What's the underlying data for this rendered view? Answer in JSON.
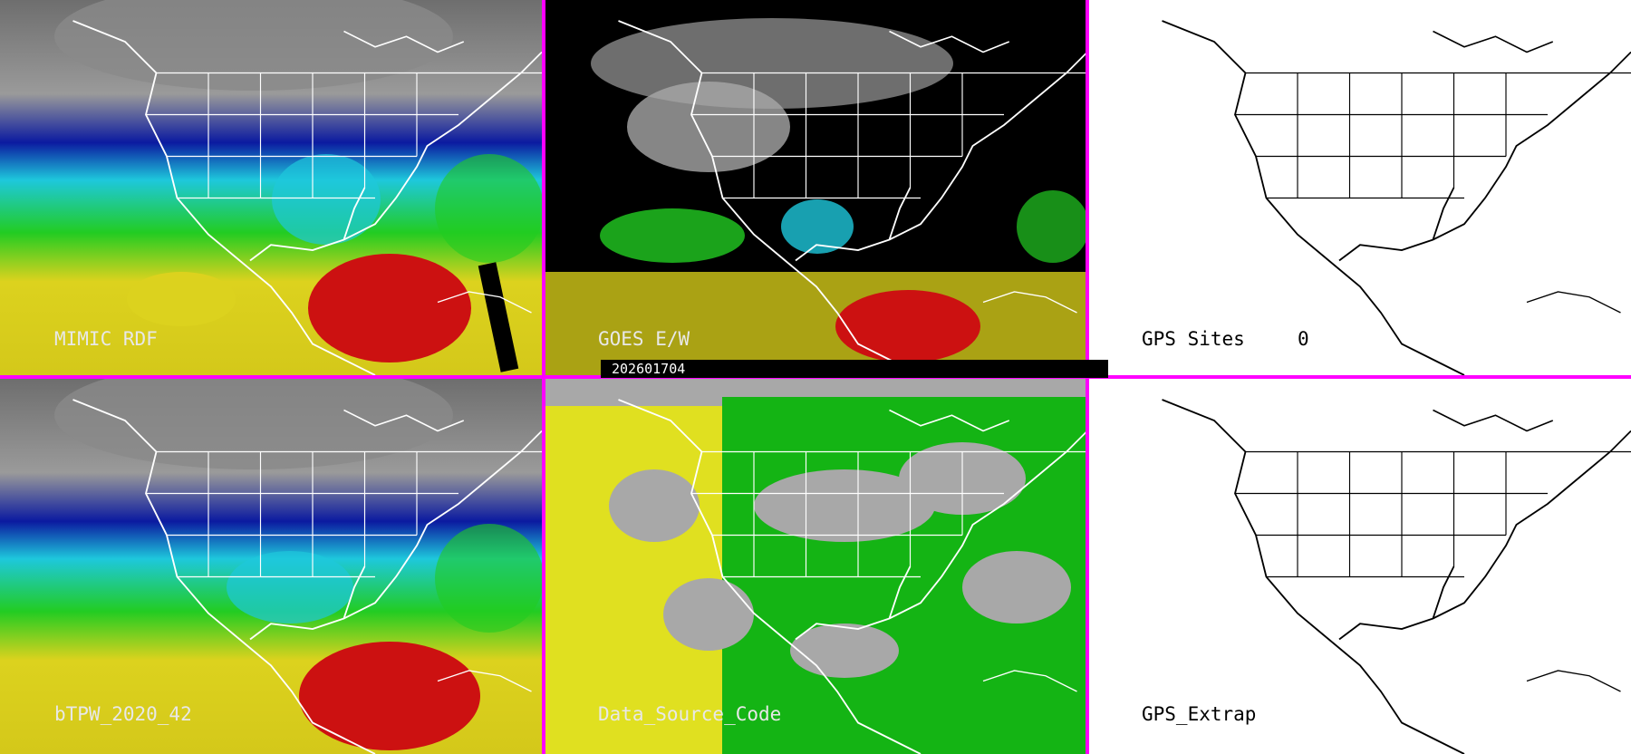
{
  "panels": {
    "mimic_rdf": {
      "label": "MIMIC RDF"
    },
    "goes_ew": {
      "label": "GOES E/W"
    },
    "gps_sites": {
      "label": "GPS Sites",
      "count": "0"
    },
    "btpw": {
      "label": "bTPW_2020_42"
    },
    "data_source_code": {
      "label": "Data_Source_Code"
    },
    "gps_extrap": {
      "label": "GPS_Extrap"
    }
  },
  "timestamp": "202601704",
  "colors": {
    "divider": "#ff00ff",
    "tpw_dry": "#808080",
    "tpw_low": "#0b1aa0",
    "tpw_mid_low": "#1ec8dc",
    "tpw_mid": "#22cc22",
    "tpw_mid_high": "#dcd21e",
    "tpw_high": "#cc1111",
    "source_yellow": "#e0e020",
    "source_green": "#14b414",
    "source_gray": "#a8a8a8"
  }
}
